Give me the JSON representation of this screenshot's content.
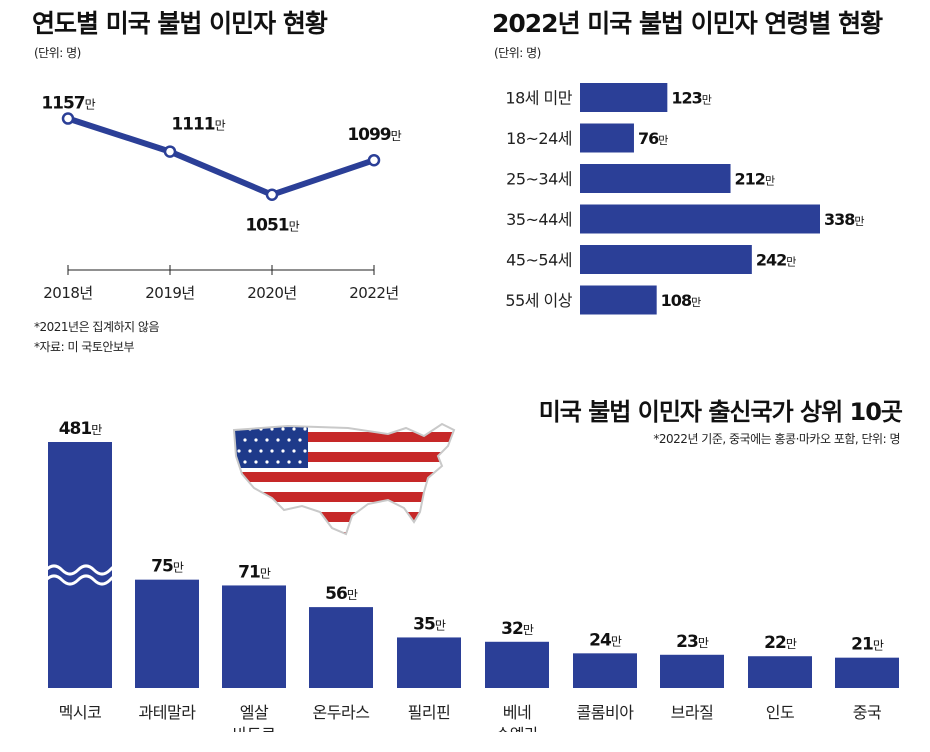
{
  "colors": {
    "bar": "#2b3f97",
    "line": "#2b3f97",
    "axis": "#222222",
    "text": "#1a1a1a"
  },
  "unit": "만",
  "chart_data": [
    {
      "type": "line",
      "title": "연도별 미국 불법 이민자 현황",
      "subtitle": "(단위: 명)",
      "categories": [
        "2018년",
        "2019년",
        "2020년",
        "2022년"
      ],
      "values": [
        1157,
        1111,
        1051,
        1099
      ],
      "value_suffix": "만",
      "ylim": [
        1020,
        1180
      ],
      "notes": [
        "*2021년은 집계하지 않음",
        "*자료: 미 국토안보부"
      ]
    },
    {
      "type": "bar",
      "orientation": "horizontal",
      "title": "2022년 미국 불법 이민자 연령별 현황",
      "subtitle": "(단위: 명)",
      "categories": [
        "18세 미만",
        "18~24세",
        "25~34세",
        "35~44세",
        "45~54세",
        "55세 이상"
      ],
      "values": [
        123,
        76,
        212,
        338,
        242,
        108
      ],
      "value_suffix": "만"
    },
    {
      "type": "bar",
      "title": "미국 불법 이민자 출신국가 상위 10곳",
      "subtitle": "*2022년 기준, 중국에는 홍콩·마카오 포함, 단위: 명",
      "categories": [
        "멕시코",
        "과테말라",
        "엘살\n바도르",
        "온두라스",
        "필리핀",
        "베네\n수엘라",
        "콜롬비아",
        "브라질",
        "인도",
        "중국"
      ],
      "values": [
        481,
        75,
        71,
        56,
        35,
        32,
        24,
        23,
        22,
        21
      ],
      "value_suffix": "만",
      "axis_break": true
    }
  ]
}
